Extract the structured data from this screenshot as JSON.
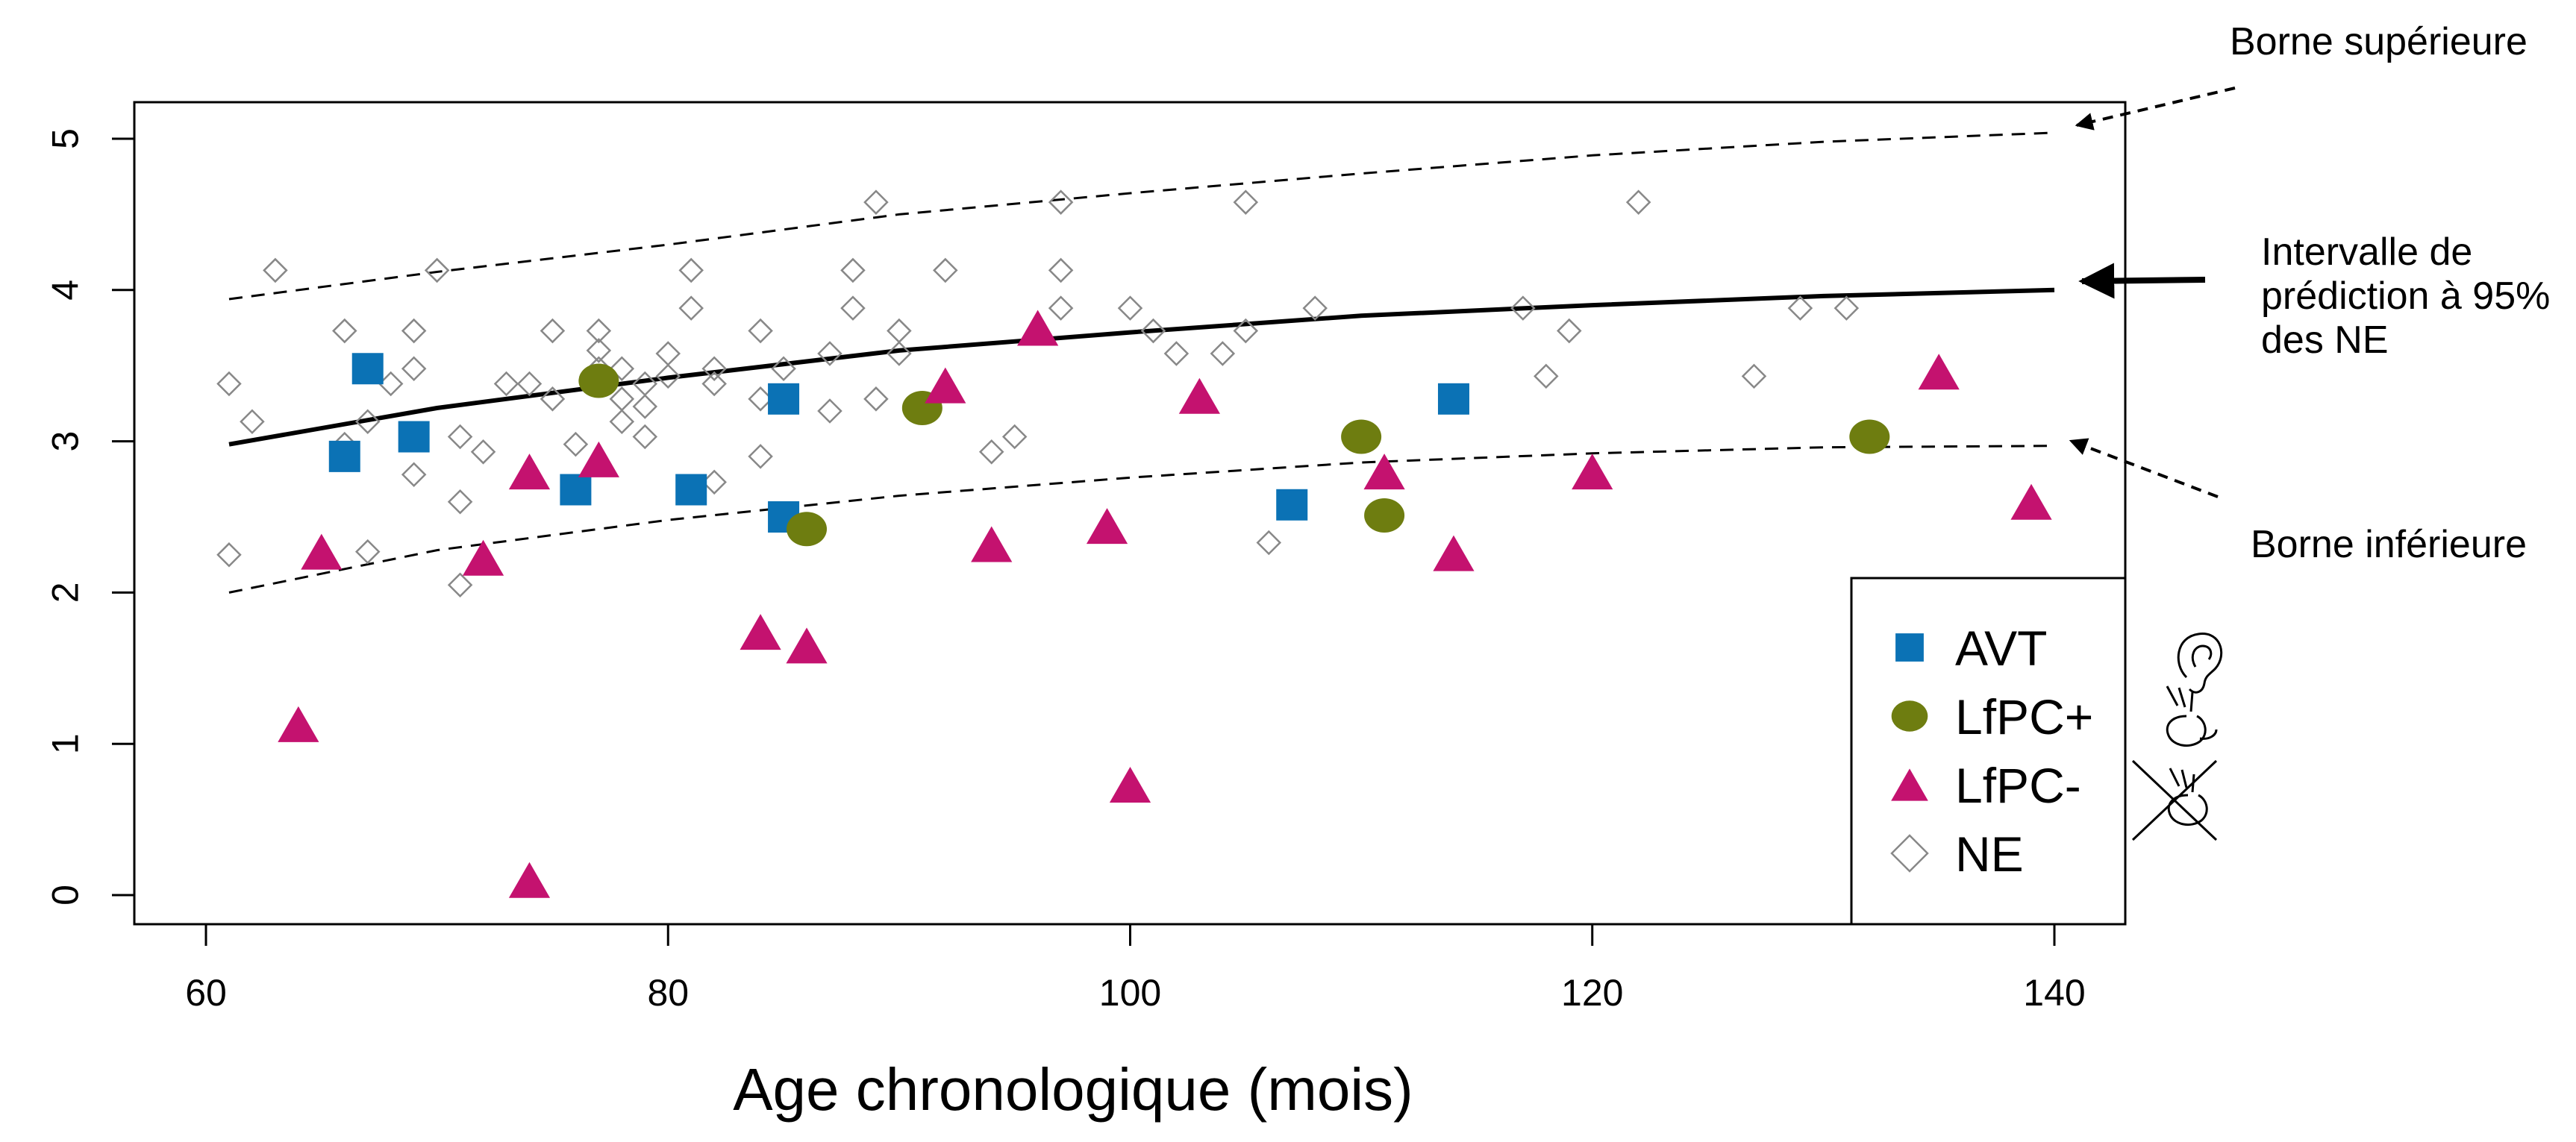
{
  "chart_data": {
    "type": "scatter",
    "xlabel": "Age chronologique (mois)",
    "ylabel": "",
    "xlim": [
      57,
      143
    ],
    "ylim": [
      -0.2,
      5.25
    ],
    "x_ticks": [
      60,
      80,
      100,
      120,
      140
    ],
    "y_ticks": [
      0,
      1,
      2,
      3,
      4,
      5
    ],
    "x_tick_labels": [
      "60",
      "80",
      "100",
      "120",
      "140"
    ],
    "y_tick_labels": [
      "0",
      "1",
      "2",
      "3",
      "4",
      "5"
    ],
    "grid": false,
    "legend_position": "bottom-right",
    "series": [
      {
        "name": "AVT",
        "marker": "square",
        "color": "#0b72b5",
        "points": [
          [
            66,
            2.9
          ],
          [
            67,
            3.48
          ],
          [
            69,
            3.03
          ],
          [
            76,
            2.68
          ],
          [
            81,
            2.68
          ],
          [
            85,
            3.28
          ],
          [
            85,
            2.5
          ],
          [
            107,
            2.58
          ],
          [
            114,
            3.28
          ]
        ]
      },
      {
        "name": "LfPC+",
        "marker": "circle",
        "color": "#6e7d10",
        "points": [
          [
            77,
            3.4
          ],
          [
            86,
            2.42
          ],
          [
            91,
            3.22
          ],
          [
            110,
            3.03
          ],
          [
            111,
            2.51
          ],
          [
            132,
            3.03
          ]
        ]
      },
      {
        "name": "LfPC-",
        "marker": "triangle",
        "color": "#c4126f",
        "points": [
          [
            64,
            1.13
          ],
          [
            65,
            2.27
          ],
          [
            72,
            2.23
          ],
          [
            74,
            2.8
          ],
          [
            74,
            0.1
          ],
          [
            77,
            2.88
          ],
          [
            84,
            1.74
          ],
          [
            86,
            1.65
          ],
          [
            92,
            3.37
          ],
          [
            94,
            2.32
          ],
          [
            96,
            3.75
          ],
          [
            99,
            2.44
          ],
          [
            100,
            0.73
          ],
          [
            103,
            3.3
          ],
          [
            111,
            2.8
          ],
          [
            114,
            2.26
          ],
          [
            120,
            2.8
          ],
          [
            135,
            3.46
          ],
          [
            139,
            2.6
          ]
        ]
      },
      {
        "name": "NE",
        "marker": "diamond",
        "color": "#888888",
        "points": [
          [
            61,
            3.38
          ],
          [
            61,
            2.25
          ],
          [
            62,
            3.13
          ],
          [
            63,
            4.13
          ],
          [
            66,
            3.73
          ],
          [
            66,
            2.98
          ],
          [
            67,
            3.13
          ],
          [
            67,
            2.27
          ],
          [
            68,
            3.38
          ],
          [
            69,
            3.73
          ],
          [
            69,
            3.48
          ],
          [
            69,
            2.78
          ],
          [
            70,
            4.13
          ],
          [
            71,
            3.03
          ],
          [
            71,
            2.6
          ],
          [
            71,
            2.05
          ],
          [
            72,
            2.93
          ],
          [
            73,
            3.38
          ],
          [
            74,
            3.38
          ],
          [
            75,
            3.73
          ],
          [
            75,
            3.28
          ],
          [
            76,
            2.98
          ],
          [
            77,
            3.73
          ],
          [
            77,
            3.6
          ],
          [
            77,
            3.48
          ],
          [
            78,
            3.48
          ],
          [
            78,
            3.28
          ],
          [
            78,
            3.13
          ],
          [
            79,
            3.38
          ],
          [
            79,
            3.23
          ],
          [
            79,
            3.03
          ],
          [
            80,
            3.58
          ],
          [
            80,
            3.43
          ],
          [
            81,
            4.13
          ],
          [
            81,
            3.88
          ],
          [
            82,
            3.48
          ],
          [
            82,
            3.38
          ],
          [
            82,
            2.73
          ],
          [
            84,
            3.73
          ],
          [
            84,
            3.28
          ],
          [
            84,
            2.9
          ],
          [
            85,
            3.48
          ],
          [
            87,
            3.58
          ],
          [
            87,
            3.2
          ],
          [
            88,
            4.13
          ],
          [
            88,
            3.88
          ],
          [
            89,
            4.58
          ],
          [
            89,
            3.28
          ],
          [
            90,
            3.73
          ],
          [
            90,
            3.58
          ],
          [
            92,
            4.13
          ],
          [
            94,
            2.93
          ],
          [
            95,
            3.03
          ],
          [
            97,
            4.58
          ],
          [
            97,
            4.13
          ],
          [
            97,
            3.88
          ],
          [
            100,
            3.88
          ],
          [
            101,
            3.73
          ],
          [
            102,
            3.58
          ],
          [
            104,
            3.58
          ],
          [
            105,
            4.58
          ],
          [
            105,
            3.73
          ],
          [
            106,
            2.33
          ],
          [
            108,
            3.88
          ],
          [
            117,
            3.88
          ],
          [
            118,
            3.43
          ],
          [
            119,
            3.73
          ],
          [
            122,
            4.58
          ],
          [
            127,
            3.43
          ],
          [
            129,
            3.88
          ],
          [
            131,
            3.88
          ]
        ]
      }
    ],
    "curves": {
      "fit": [
        [
          61,
          2.98
        ],
        [
          70,
          3.22
        ],
        [
          80,
          3.42
        ],
        [
          90,
          3.6
        ],
        [
          100,
          3.72
        ],
        [
          110,
          3.83
        ],
        [
          120,
          3.9
        ],
        [
          130,
          3.96
        ],
        [
          140,
          4.0
        ]
      ],
      "upper": [
        [
          61,
          3.94
        ],
        [
          70,
          4.12
        ],
        [
          80,
          4.3
        ],
        [
          90,
          4.5
        ],
        [
          100,
          4.64
        ],
        [
          110,
          4.77
        ],
        [
          120,
          4.89
        ],
        [
          130,
          4.98
        ],
        [
          140,
          5.04
        ]
      ],
      "lower": [
        [
          61,
          2.0
        ],
        [
          70,
          2.28
        ],
        [
          80,
          2.48
        ],
        [
          90,
          2.64
        ],
        [
          100,
          2.76
        ],
        [
          110,
          2.86
        ],
        [
          120,
          2.92
        ],
        [
          130,
          2.96
        ],
        [
          140,
          2.97
        ]
      ]
    },
    "annotations": [
      {
        "key": "upper",
        "text_lines": [
          "Borne supérieure"
        ]
      },
      {
        "key": "fit",
        "text_lines": [
          "Intervalle de",
          "prédiction à 95%",
          "des NE"
        ]
      },
      {
        "key": "lower",
        "text_lines": [
          "Borne inférieure"
        ]
      }
    ],
    "legend_icons": [
      "ear-icon",
      "cued-speech-hand-icon",
      "crossed-out-hand-icon"
    ]
  }
}
